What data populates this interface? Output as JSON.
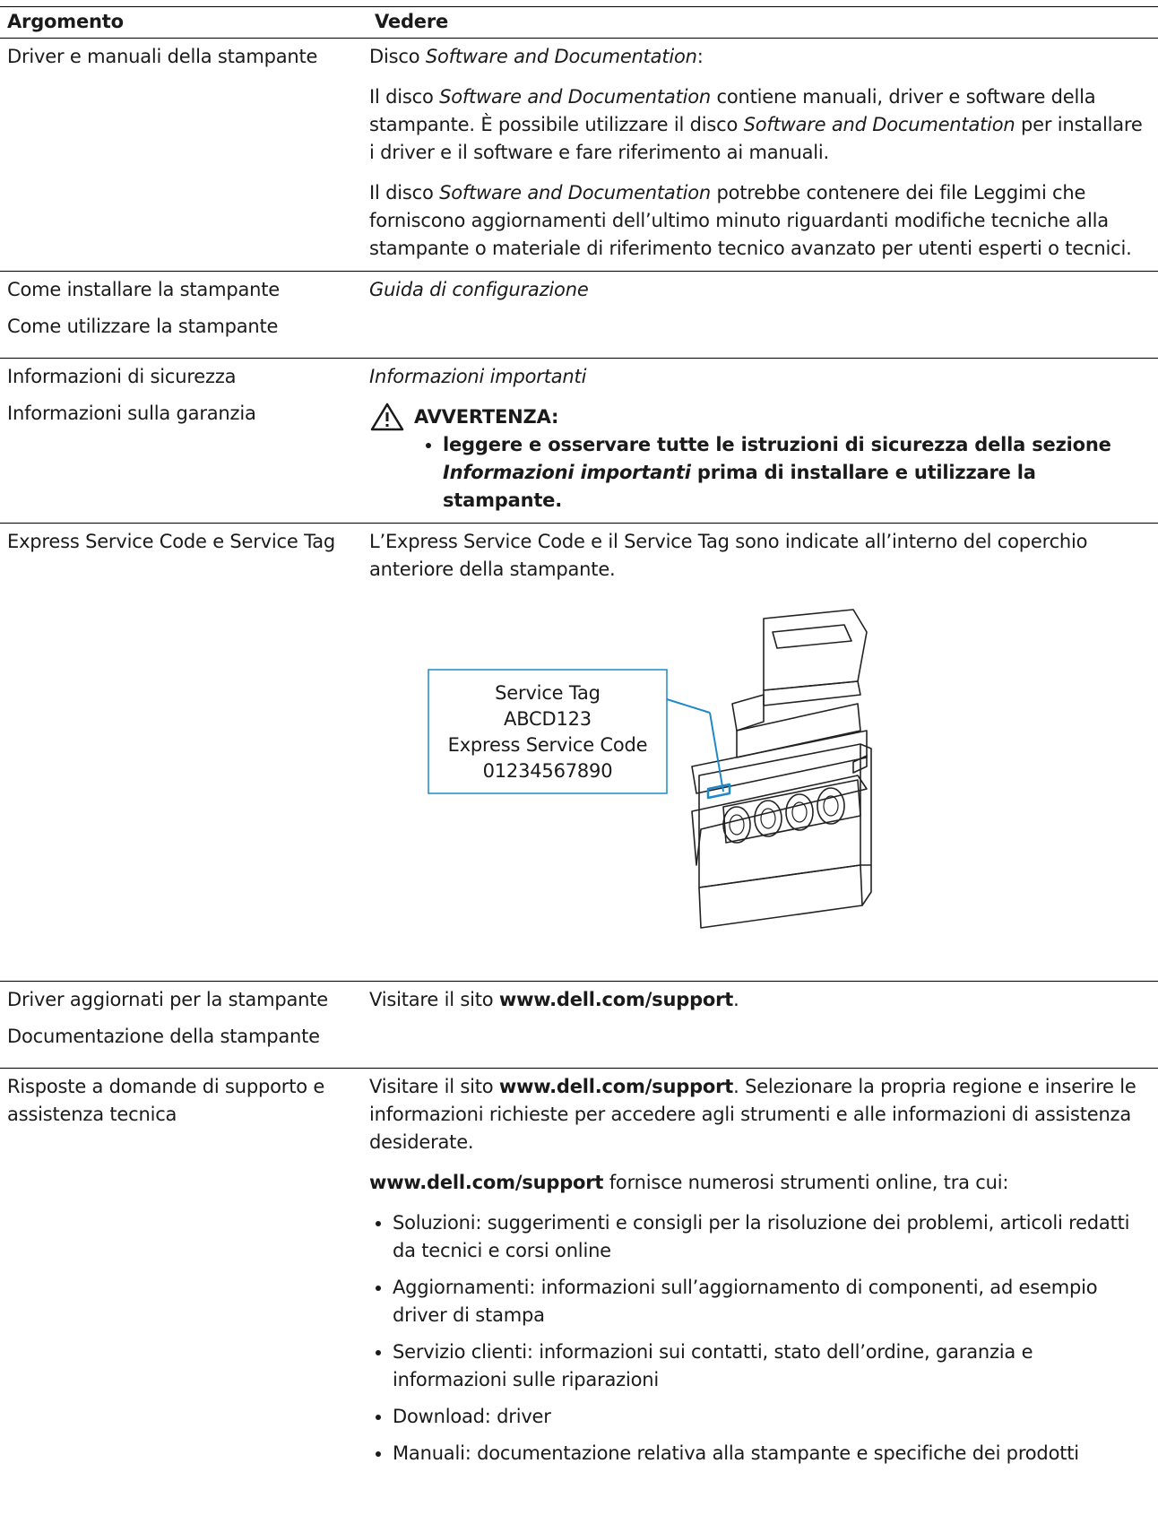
{
  "header": {
    "col1": "Argomento",
    "col2": "Vedere"
  },
  "rows": [
    {
      "topics": [
        "Driver e manuali della stampante"
      ],
      "content": [
        {
          "runs": [
            "Disco ",
            {
              "i": "Software and Documentation"
            },
            ":"
          ]
        },
        {
          "runs": [
            "Il disco ",
            {
              "i": "Software and Documentation"
            },
            " contiene manuali, driver e software della stampante. È possibile utilizzare il disco ",
            {
              "i": "Software and Documentation"
            },
            " per installare i driver e il software e fare riferimento ai manuali."
          ]
        },
        {
          "runs": [
            "Il disco ",
            {
              "i": "Software and Documentation"
            },
            " potrebbe contenere dei file Leggimi che forniscono aggiornamenti dell’ultimo minuto riguardanti modifiche tecniche alla stampante o materiale di riferimento tecnico avanzato per utenti esperti o tecnici."
          ]
        }
      ]
    },
    {
      "topics": [
        "Come installare la stampante",
        "Come utilizzare la stampante"
      ],
      "content": [
        {
          "runs": [
            {
              "i": "Guida di configurazione"
            }
          ]
        }
      ]
    },
    {
      "topics": [
        "Informazioni di sicurezza",
        "Informazioni sulla garanzia"
      ],
      "content": [
        {
          "runs": [
            {
              "i": "Informazioni importanti"
            }
          ]
        }
      ],
      "warning": {
        "title": "AVVERTENZA:",
        "items": [
          {
            "runs": [
              "leggere e osservare tutte le istruzioni di sicurezza della sezione ",
              {
                "i": "Informazioni importanti"
              },
              " prima di installare e utilizzare la stampante."
            ]
          }
        ]
      }
    },
    {
      "topics": [
        "Express Service Code e Service Tag"
      ],
      "content": [
        {
          "runs": [
            "L’Express Service Code e il Service Tag sono indicate all’interno del coperchio anteriore della stampante."
          ]
        }
      ],
      "callout": [
        "Service Tag",
        "ABCD123",
        "Express Service Code",
        "01234567890"
      ]
    },
    {
      "topics": [
        "Driver aggiornati per la stampante",
        "Documentazione della stampante"
      ],
      "content": [
        {
          "runs": [
            "Visitare il sito ",
            {
              "b": "www.dell.com/support"
            },
            "."
          ]
        }
      ]
    },
    {
      "topics": [
        "Risposte a domande di supporto e assistenza tecnica"
      ],
      "content": [
        {
          "runs": [
            "Visitare il sito ",
            {
              "b": "www.dell.com/support"
            },
            ". Selezionare la propria regione e inserire le informazioni richieste per accedere agli strumenti e alle informazioni di assistenza desiderate."
          ]
        },
        {
          "runs": [
            {
              "b": "www.dell.com/support"
            },
            " fornisce numerosi strumenti online, tra cui:"
          ]
        }
      ],
      "list": [
        {
          "runs": [
            "Soluzioni: suggerimenti e consigli per la risoluzione dei problemi, articoli redatti da tecnici e corsi online"
          ]
        },
        {
          "runs": [
            "Aggiornamenti: informazioni sull’aggiornamento di componenti, ad esempio driver di stampa"
          ]
        },
        {
          "runs": [
            "Servizio clienti: informazioni sui contatti, stato dell’ordine, garanzia e informazioni sulle riparazioni"
          ]
        },
        {
          "runs": [
            "Download: driver"
          ]
        },
        {
          "runs": [
            "Manuali: documentazione relativa alla stampante e specifiche dei prodotti"
          ]
        }
      ]
    }
  ]
}
